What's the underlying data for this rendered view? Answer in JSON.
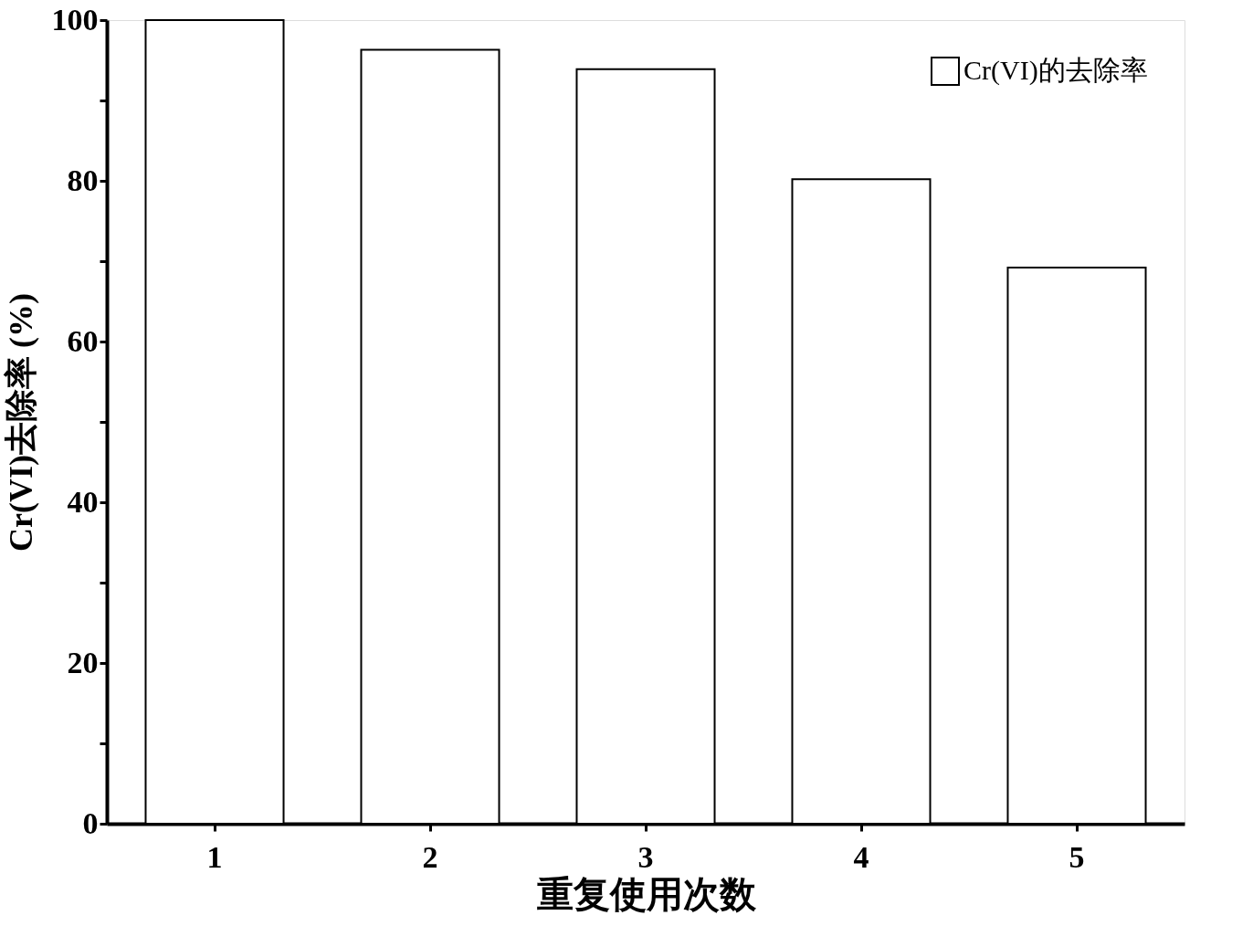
{
  "chart_data": {
    "type": "bar",
    "xlabel": "重复使用次数",
    "ylabel": "Cr(VI)去除率 (%)",
    "categories": [
      "1",
      "2",
      "3",
      "4",
      "5"
    ],
    "series": [
      {
        "name": "Cr(VI)的去除率",
        "color": "#ffffff",
        "values": [
          100,
          96.3,
          93.9,
          80.2,
          69.2
        ]
      }
    ],
    "ylim": [
      0,
      100
    ],
    "yticks": [
      0,
      {
        "value": 10,
        "label": null
      },
      20,
      {
        "value": 30,
        "label": null
      },
      40,
      {
        "value": 50,
        "label": null
      },
      60,
      {
        "value": 70,
        "label": null
      },
      80,
      {
        "value": 90,
        "label": null
      },
      100
    ],
    "grid": false,
    "legend": "top right"
  }
}
